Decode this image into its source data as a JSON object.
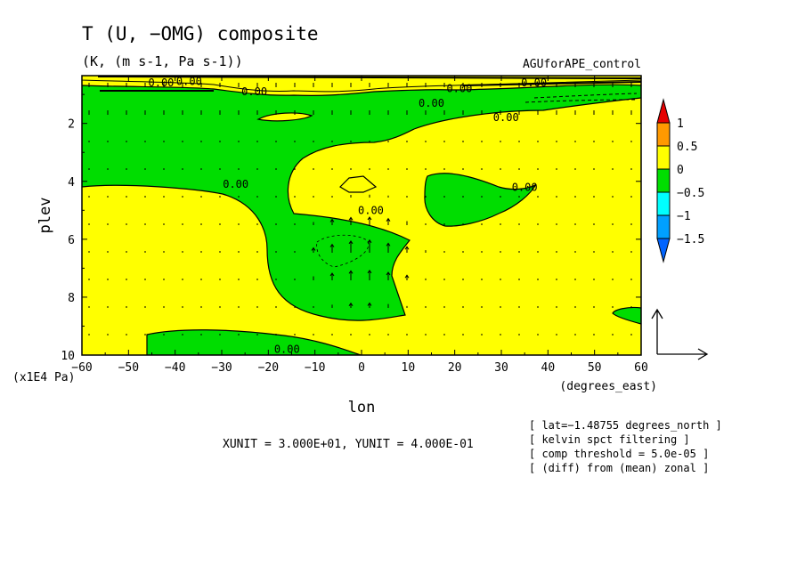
{
  "chart_data": {
    "type": "contour",
    "title": "T (U, −OMG) composite",
    "subtitle": "(K, (m s-1, Pa s-1))",
    "dataset_label": "AGUforAPE_control",
    "xlabel": "lon",
    "ylabel": "plev",
    "x_unit_label": "(degrees_east)",
    "y_unit_label": "(x1E4 Pa)",
    "xlim": [
      -60,
      60
    ],
    "ylim": [
      10,
      0.35
    ],
    "x_ticks": [
      -60,
      -50,
      -40,
      -30,
      -20,
      -10,
      0,
      10,
      20,
      30,
      40,
      50,
      60
    ],
    "y_ticks": [
      2,
      4,
      6,
      8,
      10
    ],
    "vector_unit_text": "XUNIT = 3.000E+01, YUNIT = 4.000E-01",
    "notes": [
      "[ lat=−1.48755 degrees_north ]",
      "[ kelvin spct filtering ]",
      "[ comp threshold = 5.0e-05 ]",
      "[ (diff) from (mean) zonal ]"
    ],
    "colorbar": {
      "levels": [
        -1.5,
        -1,
        -0.5,
        0,
        0.5,
        1
      ],
      "tick_labels": [
        "1",
        "0.5",
        "0",
        "−0.5",
        "−1",
        "−1.5"
      ],
      "colors": [
        "#e60000",
        "#ff9900",
        "#ffff00",
        "#00dd00",
        "#00ffff",
        "#00a0ff",
        "#0064ff"
      ]
    },
    "contour_labels": [
      {
        "text": "0.00",
        "lon": -43,
        "plev": 0.6
      },
      {
        "text": "0.00",
        "lon": -37,
        "plev": 0.55
      },
      {
        "text": "0.00",
        "lon": -23,
        "plev": 0.9
      },
      {
        "text": "0.00",
        "lon": 21,
        "plev": 0.8
      },
      {
        "text": "0.00",
        "lon": 37,
        "plev": 0.6
      },
      {
        "text": "0.00",
        "lon": 15,
        "plev": 1.3
      },
      {
        "text": "0.00",
        "lon": 31,
        "plev": 1.8
      },
      {
        "text": "0.00",
        "lon": -27,
        "plev": 4.1
      },
      {
        "text": "0.00",
        "lon": 2,
        "plev": 5.0
      },
      {
        "text": "0.00",
        "lon": 35,
        "plev": 4.2
      },
      {
        "text": "0.00",
        "lon": -16,
        "plev": 9.8
      }
    ]
  }
}
